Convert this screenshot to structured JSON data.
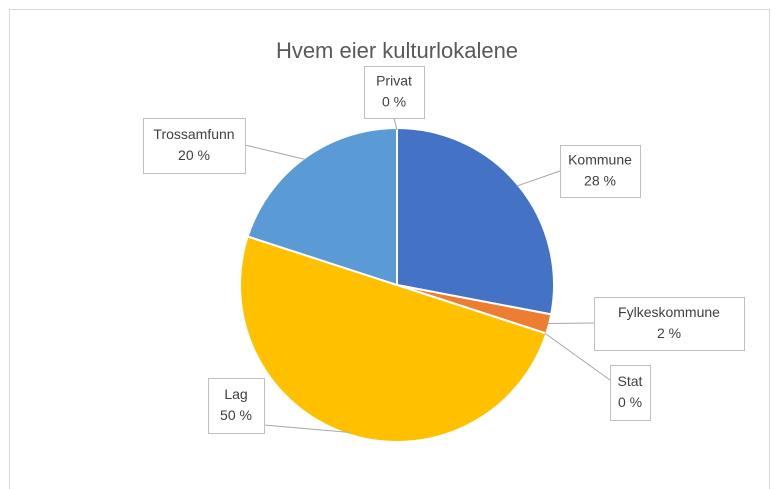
{
  "chart_data": {
    "type": "pie",
    "title": "Hvem eier kulturlokalene",
    "categories": [
      "Kommune",
      "Fylkeskommune",
      "Stat",
      "Lag",
      "Trossamfunn",
      "Privat"
    ],
    "values": [
      28,
      2,
      0,
      50,
      20,
      0
    ],
    "value_labels": [
      "28 %",
      "2 %",
      "0 %",
      "50 %",
      "20 %",
      "0 %"
    ],
    "colors": [
      "#4472c4",
      "#ed7d31",
      "#a5a5a5",
      "#ffc000",
      "#5b9bd5",
      "#70ad47"
    ]
  }
}
